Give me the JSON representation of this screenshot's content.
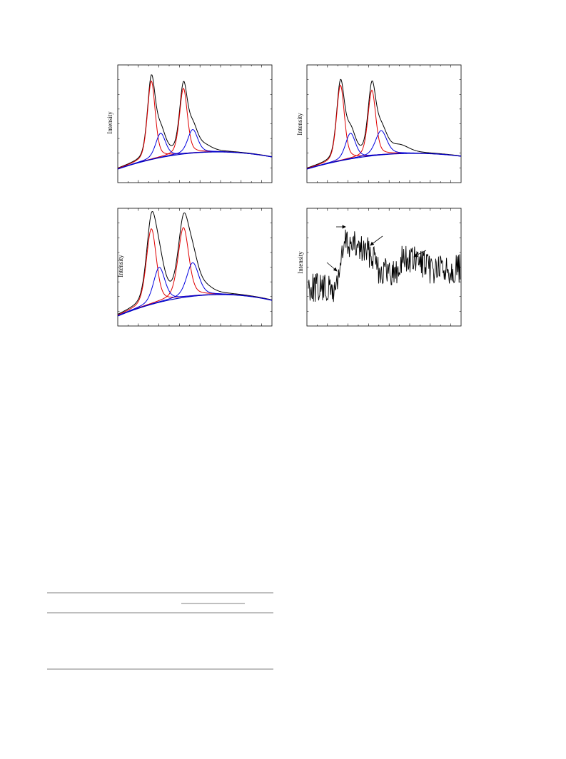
{
  "figures": [
    {
      "y_label": "Intensity"
    },
    {
      "y_label": "Intensity"
    },
    {
      "y_label": "Intensity"
    },
    {
      "y_label": "Intensity"
    }
  ]
}
